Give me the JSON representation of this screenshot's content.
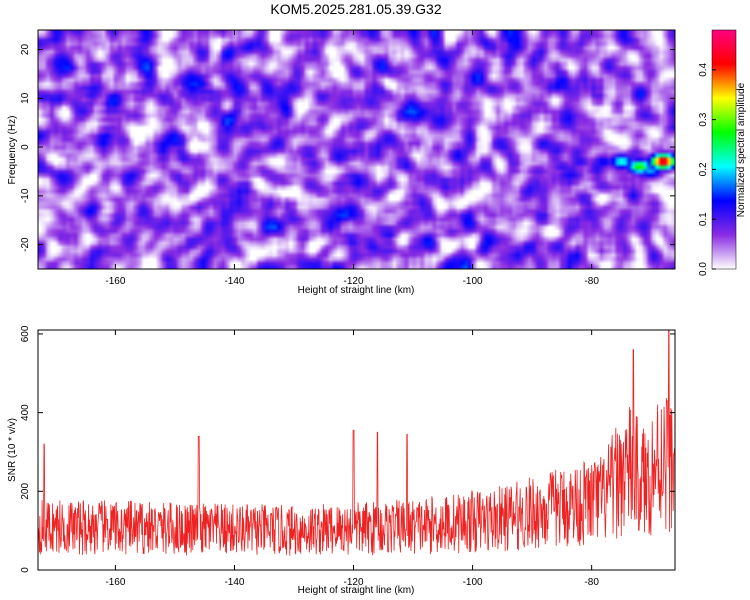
{
  "figure": {
    "title": "KOM5.2025.281.05.39.G32"
  },
  "colorbar": {
    "label": "Normalized spectral amplitude",
    "ticks": [
      "0.0",
      "0.1",
      "0.2",
      "0.3",
      "0.4"
    ],
    "stops": [
      "#ffffff",
      "#8a2be2",
      "#0000ff",
      "#00ffff",
      "#00ff00",
      "#ffff00",
      "#ff0000",
      "#ff0080"
    ]
  },
  "chart_data": [
    {
      "type": "heatmap",
      "title": "",
      "xlabel": "Height of straight line (km)",
      "ylabel": "Frequency (Hz)",
      "xlim": [
        -173,
        -66
      ],
      "ylim": [
        -25,
        24
      ],
      "zlim": [
        0,
        0.48
      ],
      "xticks": [
        "-160",
        "-140",
        "-120",
        "-100",
        "-80"
      ],
      "yticks": [
        "-20",
        "-10",
        "0",
        "10",
        "20"
      ],
      "background_amplitude": 0.08,
      "hotspots": [
        {
          "x": -68,
          "y": -3,
          "z": 0.46
        },
        {
          "x": -72,
          "y": -4,
          "z": 0.28
        },
        {
          "x": -75,
          "y": -3,
          "z": 0.22
        },
        {
          "x": -78,
          "y": -3,
          "z": 0.14
        },
        {
          "x": -82,
          "y": -3,
          "z": 0.12
        },
        {
          "x": -85,
          "y": -4,
          "z": 0.11
        },
        {
          "x": -89,
          "y": -5,
          "z": 0.1
        },
        {
          "x": -70,
          "y": -5,
          "z": 0.18
        },
        {
          "x": -148,
          "y": 11,
          "z": 0.1
        },
        {
          "x": -168,
          "y": 3,
          "z": 0.08
        },
        {
          "x": -146,
          "y": -19,
          "z": 0.1
        },
        {
          "x": -102,
          "y": 0,
          "z": 0.08
        }
      ]
    },
    {
      "type": "line",
      "title": "",
      "xlabel": "Height of straight line (km)",
      "ylabel": "SNR (10 * v/v)",
      "xlim": [
        -173,
        -66
      ],
      "ylim": [
        0,
        610
      ],
      "xticks": [
        "-160",
        "-140",
        "-120",
        "-100",
        "-80"
      ],
      "yticks": [
        "0",
        "200",
        "400",
        "600"
      ],
      "color": "#ee2222",
      "baseline_snr": [
        {
          "x": -173,
          "y": 110
        },
        {
          "x": -150,
          "y": 105
        },
        {
          "x": -130,
          "y": 100
        },
        {
          "x": -110,
          "y": 110
        },
        {
          "x": -95,
          "y": 130
        },
        {
          "x": -85,
          "y": 160
        },
        {
          "x": -78,
          "y": 180
        },
        {
          "x": -74,
          "y": 260
        },
        {
          "x": -71,
          "y": 220
        },
        {
          "x": -68,
          "y": 300
        },
        {
          "x": -66,
          "y": 250
        }
      ],
      "peaks": [
        {
          "x": -172,
          "y": 320
        },
        {
          "x": -146,
          "y": 340
        },
        {
          "x": -120,
          "y": 355
        },
        {
          "x": -116,
          "y": 350
        },
        {
          "x": -111,
          "y": 345
        },
        {
          "x": -73,
          "y": 560
        },
        {
          "x": -67,
          "y": 610
        }
      ]
    }
  ]
}
